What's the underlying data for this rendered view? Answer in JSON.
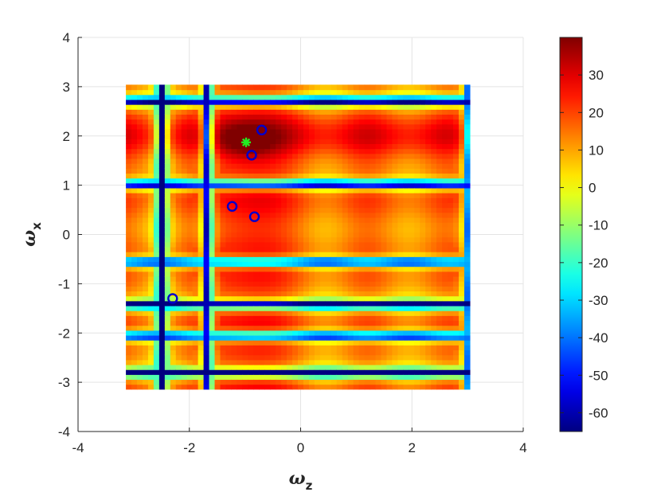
{
  "chart_data": {
    "type": "heatmap",
    "title": "",
    "xlabel": {
      "symbol": "ω",
      "subscript": "z"
    },
    "ylabel": {
      "symbol": "ω",
      "subscript": "x"
    },
    "xlim": [
      -4,
      4
    ],
    "ylim": [
      -4,
      4
    ],
    "xticks": [
      "-4",
      "-2",
      "0",
      "2",
      "4"
    ],
    "yticks": [
      "-4",
      "-3",
      "-2",
      "-1",
      "0",
      "1",
      "2",
      "3",
      "4"
    ],
    "grid": true,
    "colormap": "jet",
    "colorbar": {
      "range": [
        -65,
        40
      ],
      "ticks": [
        "30",
        "20",
        "10",
        "0",
        "-10",
        "-20",
        "-30",
        "-40",
        "-50",
        "-60"
      ]
    },
    "heatmap_domain": {
      "x": [
        -3.14,
        3.04
      ],
      "y": [
        -3.14,
        3.04
      ],
      "grid_cells": 62
    },
    "circle_markers": {
      "color": "#0000cc",
      "points": [
        {
          "x": -0.7,
          "y": 2.12
        },
        {
          "x": -0.88,
          "y": 1.61
        },
        {
          "x": -1.23,
          "y": 0.57
        },
        {
          "x": -0.83,
          "y": 0.36
        },
        {
          "x": -2.3,
          "y": -1.3
        }
      ]
    },
    "star_marker": {
      "color": "#22ee22",
      "x": -0.98,
      "y": 1.87
    }
  }
}
